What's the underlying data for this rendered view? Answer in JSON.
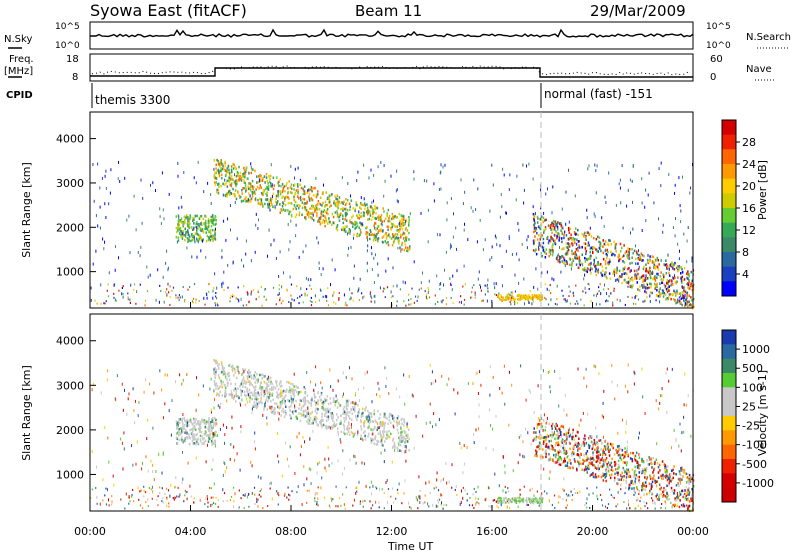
{
  "header": {
    "title": "Syowa East (fitACF)",
    "beam": "Beam 11",
    "date": "29/Mar/2009"
  },
  "noise_panel": {
    "left_label": "N.Sky",
    "right_label": "N.Search",
    "left_ticks": [
      "10^5",
      "10^0"
    ],
    "right_ticks": [
      "10^5",
      "10^0"
    ]
  },
  "freq_panel": {
    "left_label_1": "Freq.",
    "left_label_2": "[MHz]",
    "right_label": "Nave",
    "left_ticks": [
      "18",
      "8"
    ],
    "right_ticks": [
      "60",
      "0"
    ]
  },
  "cpid_panel": {
    "label": "CPID",
    "modes": [
      {
        "name": "themis 3300",
        "start_hour": 0
      },
      {
        "name": "normal (fast) -151",
        "start_hour": 18
      }
    ]
  },
  "chart_data": [
    {
      "type": "heatmap",
      "name": "power",
      "ylabel": "Slant Range [km]",
      "xlim": [
        0,
        24
      ],
      "ylim": [
        180,
        4600
      ],
      "yticks": [
        1000,
        2000,
        3000,
        4000
      ],
      "colorbar": {
        "label": "Power [dB]",
        "ticks": [
          "28",
          "24",
          "20",
          "16",
          "12",
          "8",
          "4"
        ],
        "colors": [
          "#d40000",
          "#ee2200",
          "#ff6600",
          "#ff9900",
          "#ffcc00",
          "#cccc00",
          "#66cc33",
          "#33aa55",
          "#3a8a6a",
          "#2a6aa0",
          "#1a40c0",
          "#0000ff"
        ]
      }
    },
    {
      "type": "heatmap",
      "name": "velocity",
      "ylabel": "Slant Range [km]",
      "xlabel": "Time UT",
      "xlim": [
        0,
        24
      ],
      "ylim": [
        180,
        4600
      ],
      "yticks": [
        1000,
        2000,
        3000,
        4000
      ],
      "xticks": [
        "00:00",
        "04:00",
        "08:00",
        "12:00",
        "16:00",
        "20:00",
        "00:00"
      ],
      "colorbar": {
        "label": "Velocity [m s-1]",
        "ticks": [
          "1000",
          "500",
          "100",
          "25",
          "-25",
          "-100",
          "-500",
          "-1000"
        ],
        "colors": [
          "#1a3ab0",
          "#2a6aa0",
          "#3a8a6a",
          "#55cc33",
          "#c8c8c8",
          "#c8c8c8",
          "#ffcc00",
          "#ff9900",
          "#ff6600",
          "#ee2200",
          "#d40000",
          "#cc0000"
        ]
      }
    }
  ]
}
